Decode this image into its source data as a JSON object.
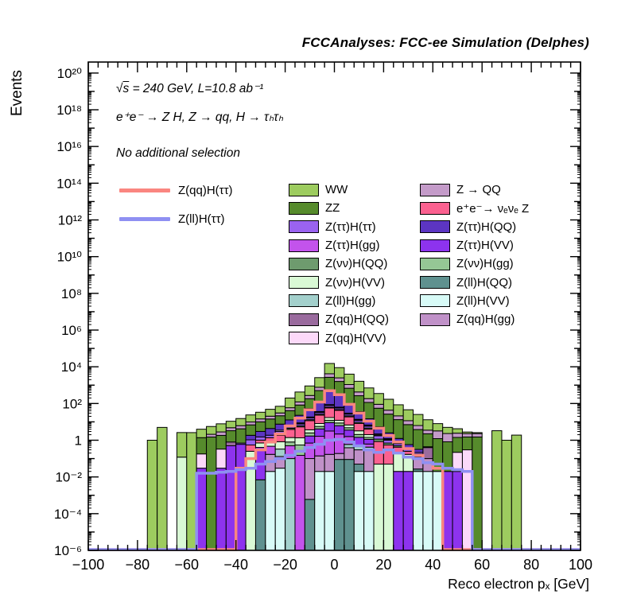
{
  "title": "FCCAnalyses: FCC-ee Simulation (Delphes)",
  "annotations": {
    "energy_sqrt": "√",
    "energy_s": "s",
    "energy_rest": " = 240 GeV, L=10.8 ab⁻¹",
    "process": "e⁺e⁻ → Z H, Z → qq, H → τₕτₕ",
    "selection": "No additional selection"
  },
  "y_axis": {
    "label": "Events",
    "tick_exponents": [
      20,
      18,
      16,
      14,
      12,
      10,
      8,
      6,
      4,
      2,
      0,
      -2,
      -4,
      -6
    ],
    "tick_labels": [
      "10²⁰",
      "10¹⁸",
      "10¹⁶",
      "10¹⁴",
      "10¹²",
      "10¹⁰",
      "10⁸",
      "10⁶",
      "10⁴",
      "10²",
      "1",
      "10⁻²",
      "10⁻⁴",
      "10⁻⁶"
    ]
  },
  "x_axis": {
    "label": "Reco electron pₓ [GeV]",
    "tick_values": [
      -100,
      -80,
      -60,
      -40,
      -20,
      0,
      20,
      40,
      60,
      80,
      100
    ],
    "tick_labels": [
      "−100",
      "−80",
      "−60",
      "−40",
      "−20",
      "0",
      "20",
      "40",
      "60",
      "80",
      "100"
    ]
  },
  "signal_legend": [
    {
      "label": "Z(qq)H(ττ)",
      "color": "#fa8680"
    },
    {
      "label": "Z(ll)H(ττ)",
      "color": "#8f90f2"
    }
  ],
  "legend": {
    "columns": [
      [
        {
          "label": "WW",
          "color": "#9dcc5f"
        },
        {
          "label": "ZZ",
          "color": "#568b2c"
        },
        {
          "label": "Z(ττ)H(ττ)",
          "color": "#9a63f0"
        },
        {
          "label": "Z(ττ)H(gg)",
          "color": "#c353ec"
        },
        {
          "label": "Z(νν)H(QQ)",
          "color": "#6e9b6e"
        },
        {
          "label": "Z(νν)H(VV)",
          "color": "#d9f9d5"
        },
        {
          "label": "Z(ll)H(gg)",
          "color": "#a3d0cc"
        },
        {
          "label": "Z(qq)H(QQ)",
          "color": "#9a6b9e"
        },
        {
          "label": "Z(qq)H(VV)",
          "color": "#fcd9f9"
        }
      ],
      [
        {
          "label": "Z → QQ",
          "color": "#c49bc9"
        },
        {
          "label": "e⁺e⁻→ νₑνₑ Z",
          "color": "#fb6190"
        },
        {
          "label": "Z(ττ)H(QQ)",
          "color": "#5c35c2"
        },
        {
          "label": "Z(ττ)H(VV)",
          "color": "#8d33ee"
        },
        {
          "label": "Z(νν)H(gg)",
          "color": "#95c795"
        },
        {
          "label": "Z(ll)H(QQ)",
          "color": "#5f918f"
        },
        {
          "label": "Z(ll)H(VV)",
          "color": "#d8fbf7"
        },
        {
          "label": "Z(qq)H(gg)",
          "color": "#c091c8"
        }
      ]
    ]
  },
  "chart_data": {
    "type": "bar",
    "subtype": "stacked-histogram-log-y",
    "title": "FCCAnalyses: FCC-ee Simulation (Delphes)",
    "xlabel": "Reco electron pₓ [GeV]",
    "ylabel": "Events",
    "xlim": [
      -100,
      100
    ],
    "ylim_exp": [
      -6,
      20.6
    ],
    "grid": false,
    "bin_start": -100,
    "bin_width": 4,
    "n_bins": 50,
    "series": [
      {
        "name": "Z(ll)H(VV)",
        "color": "#d8fbf7",
        "values": [
          0,
          0,
          0,
          0,
          0,
          0,
          0,
          0,
          0,
          0,
          0,
          0,
          0,
          0,
          0,
          0,
          0,
          0,
          0.02,
          0.03,
          0,
          0,
          0,
          0.02,
          0.02,
          0,
          0,
          0.02,
          0.02,
          0,
          0,
          0,
          0,
          0.02,
          0.02,
          0.02,
          0,
          0,
          0,
          0,
          0,
          0,
          0,
          0,
          0,
          0,
          0,
          0,
          0,
          0
        ]
      },
      {
        "name": "Z(ll)H(QQ)",
        "color": "#5f918f",
        "values": [
          0,
          0,
          0,
          0,
          0,
          0,
          0,
          0,
          0,
          0,
          0,
          0,
          0,
          0,
          0,
          0,
          0,
          0.007,
          0,
          0,
          0,
          0,
          0.0006,
          0,
          0,
          0.09,
          0.09,
          0.03,
          0,
          0,
          0,
          0,
          0,
          0.007,
          0,
          0,
          0,
          0,
          0,
          0,
          0,
          0,
          0,
          0,
          0,
          0,
          0,
          0,
          0,
          0
        ]
      },
      {
        "name": "Z(qq)H(gg)",
        "color": "#c091c8",
        "values": [
          0,
          0,
          0,
          0,
          0,
          0,
          0,
          0,
          0,
          0,
          0,
          0,
          0,
          0,
          0,
          0,
          0,
          0,
          0.15,
          0.1,
          0,
          0,
          0.1,
          0.12,
          0.15,
          0.1,
          0.3,
          0.25,
          0.3,
          0,
          0,
          0,
          0,
          0.1,
          0.08,
          0,
          0,
          0,
          0,
          0,
          0,
          0,
          0,
          0,
          0,
          0,
          0,
          0,
          0,
          0
        ]
      },
      {
        "name": "Z(ll)H(gg)",
        "color": "#a3d0cc",
        "values": [
          0,
          0,
          0,
          0,
          0,
          0,
          0,
          0,
          0,
          0,
          0,
          0,
          0,
          0,
          0,
          0,
          0,
          0,
          0,
          0.2,
          0.1,
          0,
          0,
          0,
          0,
          0,
          0.2,
          0.15,
          0.1,
          0,
          0,
          0,
          0,
          0,
          0,
          0,
          0,
          0,
          0,
          0,
          0,
          0,
          0,
          0,
          0,
          0,
          0,
          0,
          0,
          0
        ]
      },
      {
        "name": "Z(ττ)H(gg)",
        "color": "#c353ec",
        "values": [
          0,
          0,
          0,
          0,
          0,
          0,
          0,
          0,
          0,
          0,
          0,
          0,
          0,
          0,
          0,
          0,
          0,
          0,
          0.3,
          0,
          0.4,
          0.15,
          0.6,
          1.5,
          3,
          2,
          1,
          0,
          0.2,
          0,
          0,
          0,
          0,
          0,
          0,
          0,
          0,
          0,
          0,
          0,
          0,
          0,
          0,
          0,
          0,
          0,
          0,
          0,
          0,
          0
        ]
      },
      {
        "name": "Z(ττ)H(VV)",
        "color": "#8d33ee",
        "values": [
          0,
          0,
          0,
          0,
          0,
          0,
          0,
          0,
          0,
          0,
          0,
          0.03,
          0,
          0.03,
          0.5,
          0.6,
          0,
          0.4,
          0,
          0,
          0,
          0,
          1,
          2.5,
          6,
          4,
          2,
          1,
          0.5,
          0,
          0,
          0.02,
          0.02,
          0,
          0,
          0,
          0.02,
          0.02,
          0,
          0,
          0,
          0,
          0,
          0,
          0,
          0,
          0,
          0,
          0,
          0
        ]
      },
      {
        "name": "Z(νν)H(gg)",
        "color": "#95c795",
        "values": [
          0,
          0,
          0,
          0,
          0,
          0,
          0,
          0,
          0,
          0,
          0,
          0,
          0,
          0,
          0,
          0,
          0,
          0,
          0,
          0,
          0.3,
          0.4,
          0.8,
          1.5,
          3,
          2.5,
          1.2,
          0.6,
          0.3,
          0,
          0,
          0,
          0,
          0,
          0,
          0,
          0,
          0,
          0,
          0,
          0,
          0,
          0,
          0,
          0,
          0,
          0,
          0,
          0,
          0
        ]
      },
      {
        "name": "Z(νν)H(VV)",
        "color": "#d9f9d5",
        "values": [
          0,
          0,
          0,
          0,
          0,
          0,
          0,
          0,
          0,
          0.12,
          0,
          0,
          0,
          0,
          0,
          0,
          0.25,
          0.3,
          0.4,
          0.5,
          0.6,
          0.8,
          1.2,
          2.5,
          5,
          3.5,
          2,
          1.2,
          0.6,
          0.05,
          0.05,
          0.2,
          0.15,
          0.05,
          0,
          0,
          0,
          0,
          0,
          0,
          0,
          0,
          0,
          0,
          0,
          0,
          0,
          0,
          0,
          0
        ]
      },
      {
        "name": "e⁺e⁻→ νₑνₑ Z",
        "color": "#fb6190",
        "values": [
          0,
          0,
          0,
          0,
          0,
          0,
          0,
          0,
          0,
          0,
          0,
          0,
          0,
          0,
          0,
          0,
          0.3,
          0.3,
          0.5,
          1,
          2.5,
          4,
          8,
          15,
          40,
          30,
          12,
          5,
          2,
          0.8,
          0.5,
          0.2,
          0.08,
          0,
          0,
          0,
          0,
          0,
          0,
          0,
          0,
          0,
          0,
          0,
          0,
          0,
          0,
          0,
          0,
          0
        ]
      },
      {
        "name": "Z(νν)H(QQ)",
        "color": "#6e9b6e",
        "values": [
          0,
          0,
          0,
          0,
          0,
          0,
          0,
          0,
          0,
          0,
          0,
          0,
          0,
          0,
          0,
          0,
          0,
          0,
          0,
          0.4,
          0.6,
          0.8,
          1.5,
          3,
          6,
          4.5,
          2.5,
          1.2,
          0.6,
          0.3,
          0.15,
          0.08,
          0,
          0,
          0,
          0,
          0,
          0,
          0,
          0,
          0,
          0,
          0,
          0,
          0,
          0,
          0,
          0,
          0,
          0
        ]
      },
      {
        "name": "Z(ττ)H(ττ)",
        "color": "#9a63f0",
        "values": [
          0,
          0,
          0,
          0,
          0,
          0,
          0,
          0,
          0,
          0,
          0,
          0,
          0,
          0,
          0,
          0.1,
          0.5,
          0.5,
          0.5,
          0.8,
          0.8,
          1.5,
          3,
          6,
          15,
          10,
          5,
          2.5,
          1.2,
          0.6,
          0.3,
          0.15,
          0.08,
          0.04,
          0,
          0,
          0,
          0,
          0,
          0,
          0,
          0,
          0,
          0,
          0,
          0,
          0,
          0,
          0,
          0
        ]
      },
      {
        "name": "Z(qq)H(VV)",
        "color": "#fcd9f9",
        "values": [
          0,
          0,
          0,
          0,
          0,
          0,
          0,
          0,
          0,
          0,
          0,
          0.15,
          0,
          0.3,
          0,
          0,
          0,
          0,
          0,
          0.5,
          0,
          0.5,
          1,
          2,
          4,
          3,
          1.5,
          0.8,
          0.4,
          0.2,
          0.1,
          0,
          0,
          0,
          0,
          0,
          0,
          0.2,
          0.3,
          0,
          0,
          0,
          0,
          0,
          0,
          0,
          0,
          0,
          0,
          0
        ]
      },
      {
        "name": "Z(qq)H(QQ)",
        "color": "#9a6b9e",
        "values": [
          0,
          0,
          0,
          0,
          0,
          0,
          0,
          0,
          0,
          0,
          0,
          0,
          0,
          0,
          0.3,
          0,
          0,
          0,
          0,
          0,
          0.5,
          0.7,
          1.2,
          2.5,
          5,
          3.5,
          2,
          1,
          0.5,
          0.25,
          0.12,
          0,
          0,
          0,
          0.3,
          0,
          0,
          0,
          0,
          0,
          0,
          0,
          0,
          0,
          0,
          0,
          0,
          0,
          0,
          0
        ]
      },
      {
        "name": "Z(ττ)H(QQ)",
        "color": "#5c35c2",
        "values": [
          0,
          0,
          0,
          0,
          0,
          0,
          0,
          0,
          0,
          0,
          0,
          0,
          0,
          0,
          0,
          0,
          0.8,
          1.5,
          2.5,
          4,
          7,
          14,
          35,
          90,
          380,
          230,
          70,
          22,
          8,
          3.2,
          1.3,
          0.6,
          0.25,
          0.1,
          0.04,
          0,
          0,
          0,
          0,
          0,
          0,
          0,
          0,
          0,
          0,
          0,
          0,
          0,
          0,
          0
        ]
      },
      {
        "name": "ZZ",
        "color": "#568b2c",
        "values": [
          0,
          0,
          0,
          0,
          0,
          0,
          0,
          0,
          0,
          0,
          0,
          1.2,
          1.5,
          1.5,
          2.5,
          3.5,
          5,
          7,
          10,
          14,
          28,
          60,
          130,
          380,
          2200,
          1300,
          580,
          230,
          100,
          50,
          24,
          12,
          6.5,
          3.5,
          1.8,
          1.2,
          0.8,
          1.2,
          1.2,
          1.5,
          0,
          0,
          0,
          0,
          0,
          0,
          0,
          0,
          0,
          0
        ]
      },
      {
        "name": "Z → QQ",
        "color": "#c49bc9",
        "values": [
          0,
          0,
          0,
          0,
          0,
          0,
          0,
          0,
          0,
          0,
          0,
          0,
          0.6,
          1,
          1.5,
          2,
          3,
          4.5,
          6,
          9,
          18,
          40,
          90,
          260,
          1500,
          900,
          400,
          160,
          70,
          35,
          17,
          8,
          4.5,
          2.5,
          1.3,
          2,
          1.5,
          1,
          0.8,
          0.8,
          0,
          0,
          0,
          0,
          0,
          0,
          0,
          0,
          0,
          0
        ]
      },
      {
        "name": "WW",
        "color": "#9dcc5f",
        "values": [
          0,
          0,
          0,
          0,
          0,
          0,
          1,
          5,
          0,
          2.5,
          2.6,
          2.6,
          3.5,
          5,
          6,
          9,
          14,
          19,
          28,
          40,
          140,
          300,
          630,
          1800,
          11000,
          6500,
          2900,
          1200,
          520,
          260,
          127,
          64,
          34,
          19,
          9.5,
          4.8,
          2.7,
          1.8,
          0.5,
          0.3,
          0,
          3.3,
          1.0,
          1.9,
          0,
          0,
          0,
          0,
          0,
          0
        ]
      }
    ],
    "overlays": [
      {
        "name": "Z(qq)H(ττ)",
        "color": "#fa8680",
        "values": [
          0,
          0,
          0,
          0,
          0,
          0,
          0,
          0,
          0,
          0,
          0,
          0,
          0,
          0,
          0,
          0.03,
          0.1,
          0.3,
          0.8,
          2.2,
          6,
          16,
          45,
          120,
          500,
          300,
          90,
          30,
          11,
          4.5,
          1.8,
          0.8,
          0.35,
          0.15,
          0.06,
          0.03,
          0,
          0,
          0,
          0,
          0,
          0,
          0,
          0,
          0,
          0,
          0,
          0,
          0,
          0
        ]
      },
      {
        "name": "Z(ll)H(ττ)",
        "color": "#8f90f2",
        "values": [
          0,
          0,
          0,
          0,
          0,
          0,
          0,
          0,
          0,
          0,
          0,
          0.016,
          0.016,
          0.018,
          0.02,
          0.025,
          0.03,
          0.05,
          0.07,
          0.1,
          0.15,
          0.25,
          0.4,
          0.6,
          1.0,
          1.1,
          0.8,
          0.5,
          0.3,
          0.22,
          0.3,
          0.2,
          0.12,
          0.1,
          0.06,
          0.05,
          0.03,
          0.025,
          0.02,
          0,
          0,
          0,
          0,
          0,
          0,
          0,
          0,
          0,
          0,
          0
        ]
      }
    ],
    "legend_position": "inside-top"
  }
}
